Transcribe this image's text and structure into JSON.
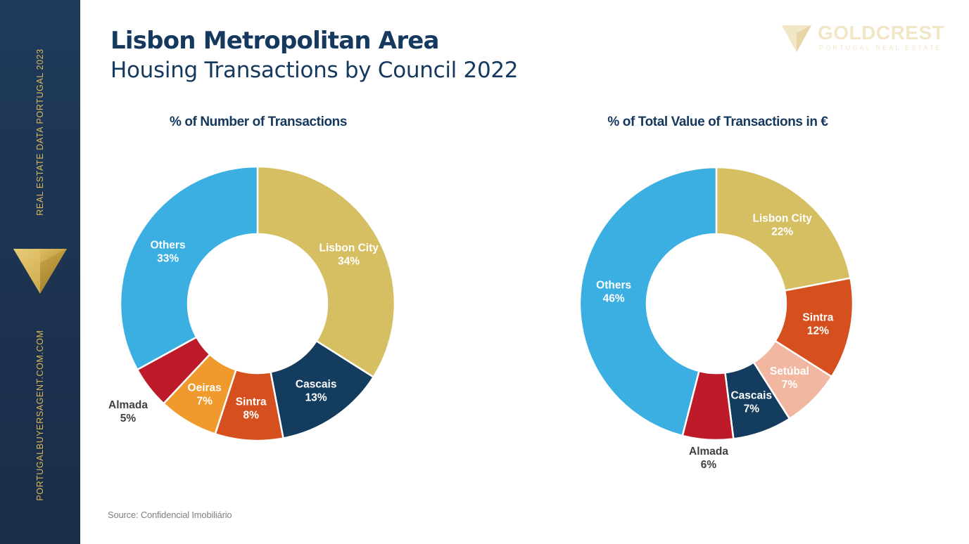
{
  "sidebar": {
    "top_text": "REAL ESTATE DATA PORTUGAL 2023",
    "bottom_text": "PORTUGALBUYERSAGENT.COM.COM"
  },
  "header": {
    "title": "Lisbon Metropolitan Area",
    "subtitle": "Housing Transactions by Council 2022"
  },
  "brand": {
    "name": "GOLDCREST",
    "tagline": "PORTUGAL REAL ESTATE"
  },
  "source": "Source: Confidencial Imobiliário",
  "colors": {
    "Lisbon City": "#d6bf62",
    "Cascais": "#143c5f",
    "Sintra": "#d5501e",
    "Oeiras": "#f0992c",
    "Almada": "#be1b2a",
    "Others": "#3baee2",
    "Setúbal": "#f2b7a0"
  },
  "chart_data": [
    {
      "type": "pie",
      "donut": true,
      "title": "% of Number of Transactions",
      "slices": [
        {
          "label": "Lisbon City",
          "value": 34,
          "display": "34%"
        },
        {
          "label": "Cascais",
          "value": 13,
          "display": "13%"
        },
        {
          "label": "Sintra",
          "value": 8,
          "display": "8%"
        },
        {
          "label": "Oeiras",
          "value": 7,
          "display": "7%"
        },
        {
          "label": "Almada",
          "value": 5,
          "display": "5%"
        },
        {
          "label": "Others",
          "value": 33,
          "display": "33%"
        }
      ]
    },
    {
      "type": "pie",
      "donut": true,
      "title": "% of Total Value of Transactions in €",
      "slices": [
        {
          "label": "Lisbon City",
          "value": 22,
          "display": "22%"
        },
        {
          "label": "Sintra",
          "value": 12,
          "display": "12%"
        },
        {
          "label": "Setúbal",
          "value": 7,
          "display": "7%"
        },
        {
          "label": "Cascais",
          "value": 7,
          "display": "7%"
        },
        {
          "label": "Almada",
          "value": 6,
          "display": "6%"
        },
        {
          "label": "Others",
          "value": 46,
          "display": "46%"
        }
      ]
    }
  ]
}
